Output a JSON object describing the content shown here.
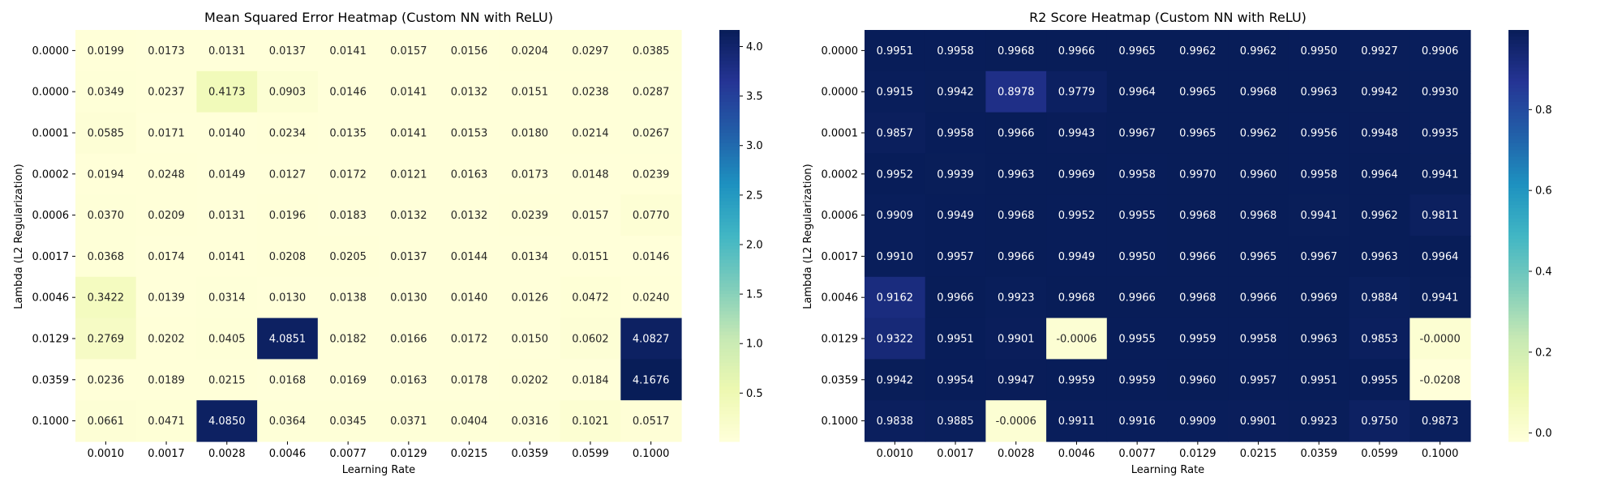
{
  "chart_data": [
    {
      "type": "heatmap",
      "title": "Mean Squared Error Heatmap (Custom NN with ReLU)",
      "xlabel": "Learning Rate",
      "ylabel": "Lambda (L2 Regularization)",
      "x": [
        "0.0010",
        "0.0017",
        "0.0028",
        "0.0046",
        "0.0077",
        "0.0129",
        "0.0215",
        "0.0359",
        "0.0599",
        "0.1000"
      ],
      "y": [
        "0.0000",
        "0.0000",
        "0.0001",
        "0.0002",
        "0.0006",
        "0.0017",
        "0.0046",
        "0.0129",
        "0.0359",
        "0.1000"
      ],
      "values": [
        [
          0.0199,
          0.0173,
          0.0131,
          0.0137,
          0.0141,
          0.0157,
          0.0156,
          0.0204,
          0.0297,
          0.0385
        ],
        [
          0.0349,
          0.0237,
          0.4173,
          0.0903,
          0.0146,
          0.0141,
          0.0132,
          0.0151,
          0.0238,
          0.0287
        ],
        [
          0.0585,
          0.0171,
          0.014,
          0.0234,
          0.0135,
          0.0141,
          0.0153,
          0.018,
          0.0214,
          0.0267
        ],
        [
          0.0194,
          0.0248,
          0.0149,
          0.0127,
          0.0172,
          0.0121,
          0.0163,
          0.0173,
          0.0148,
          0.0239
        ],
        [
          0.037,
          0.0209,
          0.0131,
          0.0196,
          0.0183,
          0.0132,
          0.0132,
          0.0239,
          0.0157,
          0.077
        ],
        [
          0.0368,
          0.0174,
          0.0141,
          0.0208,
          0.0205,
          0.0137,
          0.0144,
          0.0134,
          0.0151,
          0.0146
        ],
        [
          0.3422,
          0.0139,
          0.0314,
          0.013,
          0.0138,
          0.013,
          0.014,
          0.0126,
          0.0472,
          0.024
        ],
        [
          0.2769,
          0.0202,
          0.0405,
          4.0851,
          0.0182,
          0.0166,
          0.0172,
          0.015,
          0.0602,
          4.0827
        ],
        [
          0.0236,
          0.0189,
          0.0215,
          0.0168,
          0.0169,
          0.0163,
          0.0178,
          0.0202,
          0.0184,
          4.1676
        ],
        [
          0.0661,
          0.0471,
          4.085,
          0.0364,
          0.0345,
          0.0371,
          0.0404,
          0.0316,
          0.1021,
          0.0517
        ]
      ],
      "value_format": "-.4f",
      "colormap": "YlGnBu",
      "color_range": [
        0.0121,
        4.1676
      ],
      "colorbar_ticks": [
        "0.5",
        "1.0",
        "1.5",
        "2.0",
        "2.5",
        "3.0",
        "3.5",
        "4.0"
      ]
    },
    {
      "type": "heatmap",
      "title": "R2 Score Heatmap (Custom NN with ReLU)",
      "xlabel": "Learning Rate",
      "ylabel": "Lambda (L2 Regularization)",
      "x": [
        "0.0010",
        "0.0017",
        "0.0028",
        "0.0046",
        "0.0077",
        "0.0129",
        "0.0215",
        "0.0359",
        "0.0599",
        "0.1000"
      ],
      "y": [
        "0.0000",
        "0.0000",
        "0.0001",
        "0.0002",
        "0.0006",
        "0.0017",
        "0.0046",
        "0.0129",
        "0.0359",
        "0.1000"
      ],
      "values": [
        [
          0.9951,
          0.9958,
          0.9968,
          0.9966,
          0.9965,
          0.9962,
          0.9962,
          0.995,
          0.9927,
          0.9906
        ],
        [
          0.9915,
          0.9942,
          0.8978,
          0.9779,
          0.9964,
          0.9965,
          0.9968,
          0.9963,
          0.9942,
          0.993
        ],
        [
          0.9857,
          0.9958,
          0.9966,
          0.9943,
          0.9967,
          0.9965,
          0.9962,
          0.9956,
          0.9948,
          0.9935
        ],
        [
          0.9952,
          0.9939,
          0.9963,
          0.9969,
          0.9958,
          0.997,
          0.996,
          0.9958,
          0.9964,
          0.9941
        ],
        [
          0.9909,
          0.9949,
          0.9968,
          0.9952,
          0.9955,
          0.9968,
          0.9968,
          0.9941,
          0.9962,
          0.9811
        ],
        [
          0.991,
          0.9957,
          0.9966,
          0.9949,
          0.995,
          0.9966,
          0.9965,
          0.9967,
          0.9963,
          0.9964
        ],
        [
          0.9162,
          0.9966,
          0.9923,
          0.9968,
          0.9966,
          0.9968,
          0.9966,
          0.9969,
          0.9884,
          0.9941
        ],
        [
          0.9322,
          0.9951,
          0.9901,
          -0.0006,
          0.9955,
          0.9959,
          0.9958,
          0.9963,
          0.9853,
          -0.0
        ],
        [
          0.9942,
          0.9954,
          0.9947,
          0.9959,
          0.9959,
          0.996,
          0.9957,
          0.9951,
          0.9955,
          -0.0208
        ],
        [
          0.9838,
          0.9885,
          -0.0006,
          0.9911,
          0.9916,
          0.9909,
          0.9901,
          0.9923,
          0.975,
          0.9873
        ]
      ],
      "value_format": "-.4f",
      "colormap": "YlGnBu",
      "color_range": [
        -0.0208,
        0.997
      ],
      "colorbar_ticks": [
        "0.0",
        "0.2",
        "0.4",
        "0.6",
        "0.8"
      ]
    }
  ]
}
